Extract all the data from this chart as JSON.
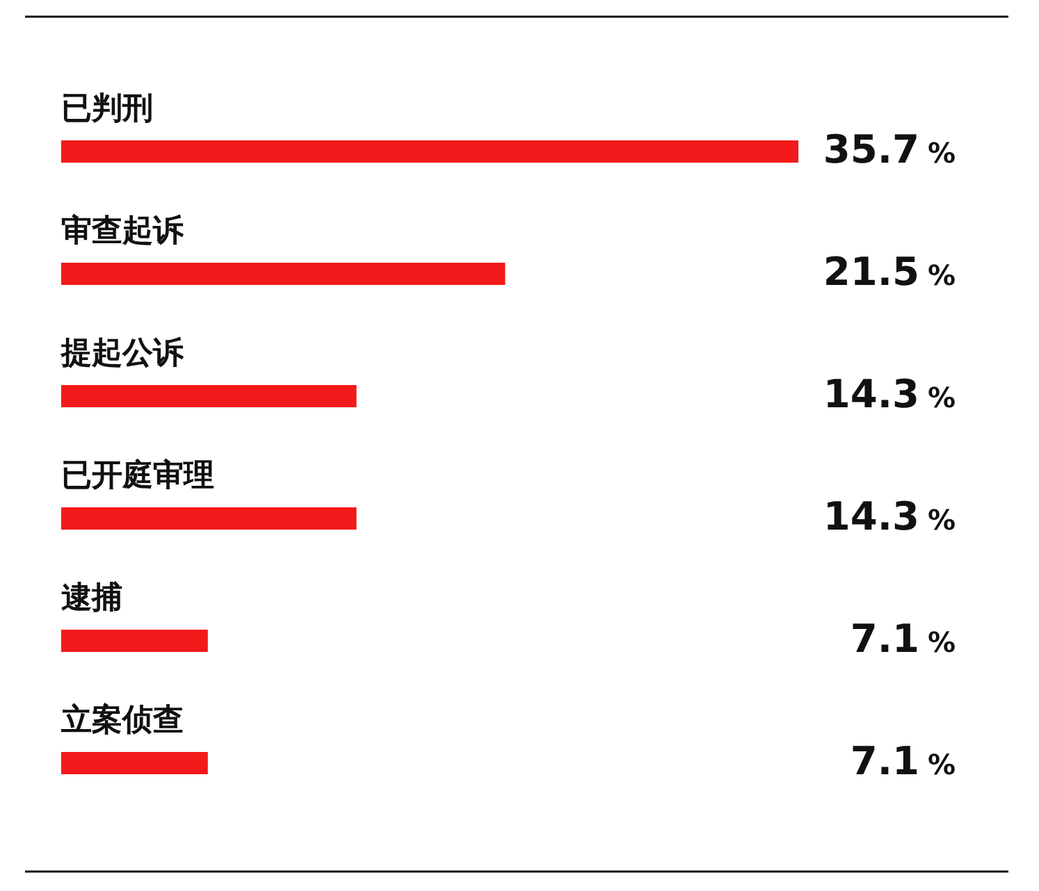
{
  "chart_data": {
    "type": "bar",
    "orientation": "horizontal",
    "categories": [
      "已判刑",
      "审查起诉",
      "提起公诉",
      "已开庭审理",
      "逮捕",
      "立案侦查"
    ],
    "values": [
      35.7,
      21.5,
      14.3,
      14.3,
      7.1,
      7.1
    ],
    "color": "#f21a1a",
    "value_labels": [
      "35.7 %",
      "21.5 %",
      "14.3 %",
      "14.3 %",
      "7.1 %",
      "7.1 %"
    ]
  }
}
